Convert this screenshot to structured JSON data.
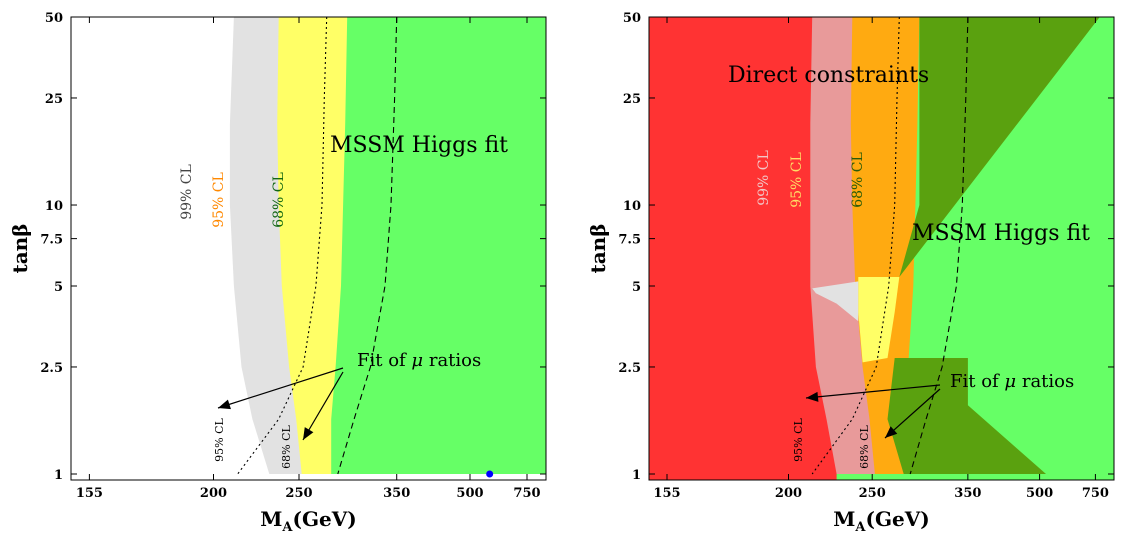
{
  "colors": {
    "white": "#ffffff",
    "gray99": "#e2e2e2",
    "yellow95": "#ffff66",
    "green68": "#66ff66",
    "red_direct": "#ff3333",
    "pink99": "#e89a9a",
    "orange95": "#ffaa11",
    "darkgreen68": "#5aa10f",
    "best_fit_point": "#0000ff",
    "cl99_text": "#444444",
    "cl95_text": "#ff8800",
    "cl68_text": "#116611",
    "cl99_text_r": "#f2c6c6",
    "cl95_text_r": "#ffdd66",
    "cl68_text_r": "#2a5a08",
    "direct_text": "#cc2222"
  },
  "chart_data": [
    {
      "type": "area",
      "xlabel_main": "M",
      "xlabel_sub": "A",
      "xlabel_unit": "(GeV)",
      "ylabel": "tanβ",
      "x_scale": "reciprocal",
      "y_scale": "log",
      "xlim": [
        150,
        900
      ],
      "ylim": [
        0.95,
        50
      ],
      "x_ticks": [
        155,
        200,
        250,
        350,
        500,
        750
      ],
      "y_ticks": [
        1,
        2.5,
        5,
        7.5,
        10,
        25,
        50
      ],
      "fill_end_x": 900,
      "regions": [
        {
          "name": "99% CL",
          "color_key": "gray99",
          "boundary": [
            [
              210,
              50
            ],
            [
              208,
              20
            ],
            [
              208,
              10
            ],
            [
              210,
              5
            ],
            [
              214,
              2.5
            ],
            [
              220,
              1.6
            ],
            [
              230,
              1
            ]
          ]
        },
        {
          "name": "95% CL",
          "color_key": "yellow95",
          "boundary": [
            [
              236,
              50
            ],
            [
              235,
              20
            ],
            [
              236,
              10
            ],
            [
              238,
              5
            ],
            [
              243,
              2.5
            ],
            [
              248,
              1.6
            ],
            [
              252,
              1
            ]
          ]
        },
        {
          "name": "68% CL",
          "color_key": "green68",
          "boundary": [
            [
              291,
              50
            ],
            [
              289,
              20
            ],
            [
              287,
              10
            ],
            [
              285,
              5
            ],
            [
              280,
              2.5
            ],
            [
              276,
              1.6
            ],
            [
              276,
              1
            ]
          ]
        }
      ],
      "curves": [
        {
          "name": "95% CL (Fit of μ ratios)",
          "style": "dotted",
          "points": [
            [
              272,
              50
            ],
            [
              270,
              25
            ],
            [
              268,
              10
            ],
            [
              263,
              5
            ],
            [
              253,
              2.5
            ],
            [
              236,
              1.6
            ],
            [
              212,
              1
            ]
          ]
        },
        {
          "name": "68% CL (Fit of μ ratios)",
          "style": "dashed",
          "points": [
            [
              350,
              50
            ],
            [
              347,
              25
            ],
            [
              342,
              10
            ],
            [
              334,
              5
            ],
            [
              316,
              2.5
            ],
            [
              298,
              1.6
            ],
            [
              282,
              1
            ]
          ]
        }
      ],
      "best_fit": {
        "x": 565,
        "y": 1
      },
      "labels": {
        "title": "MSSM Higgs fit",
        "cl99": "99% CL",
        "cl95": "95% CL",
        "cl68": "68% CL",
        "fit_prefix": "Fit of ",
        "fit_mu": "μ",
        "fit_suffix": " ratios",
        "cl95_small": "95% CL",
        "cl68_small": "68% CL"
      }
    },
    {
      "type": "area",
      "xlabel_main": "M",
      "xlabel_sub": "A",
      "xlabel_unit": "(GeV)",
      "ylabel": "tanβ",
      "x_scale": "reciprocal",
      "y_scale": "log",
      "xlim": [
        150,
        900
      ],
      "ylim": [
        0.95,
        50
      ],
      "x_ticks": [
        155,
        200,
        250,
        350,
        500,
        750
      ],
      "y_ticks": [
        1,
        2.5,
        5,
        7.5,
        10,
        25,
        50
      ],
      "fill_end_x": 900,
      "direct_boundary": [
        [
          212,
          50
        ],
        [
          211,
          20
        ],
        [
          211,
          10
        ],
        [
          211,
          5
        ],
        [
          214,
          2.5
        ],
        [
          220,
          1.6
        ],
        [
          226,
          1
        ]
      ],
      "regions": [
        {
          "name": "99% CL",
          "color_key": "pink99",
          "boundary": [
            [
              236,
              50
            ],
            [
              235,
              20
            ],
            [
              236,
              10
            ],
            [
              238,
              5
            ],
            [
              243,
              2.5
            ],
            [
              248,
              1.6
            ],
            [
              252,
              1
            ]
          ]
        },
        {
          "name": "95% CL",
          "color_key": "orange95",
          "boundary": [
            [
              291,
              50
            ],
            [
              289,
              20
            ],
            [
              287,
              10
            ],
            [
              285,
              5
            ],
            [
              280,
              2.5
            ],
            [
              276,
              1.6
            ],
            [
              276,
              1
            ]
          ]
        }
      ],
      "upper_68": [
        [
          291,
          50
        ],
        [
          780,
          50
        ],
        [
          272,
          5.4
        ],
        [
          291,
          10
        ]
      ],
      "lower_68": [
        [
          268,
          2.7
        ],
        [
          350,
          2.7
        ],
        [
          350,
          1.8
        ],
        [
          520,
          1
        ],
        [
          276,
          1
        ],
        [
          262,
          1.6
        ]
      ],
      "curves": [
        {
          "name": "95% CL (Fit of μ ratios)",
          "style": "dotted",
          "points": [
            [
              272,
              50
            ],
            [
              270,
              25
            ],
            [
              268,
              10
            ],
            [
              263,
              5
            ],
            [
              253,
              2.5
            ],
            [
              236,
              1.6
            ],
            [
              212,
              1
            ]
          ]
        },
        {
          "name": "68% CL (Fit of μ ratios)",
          "style": "dashed",
          "points": [
            [
              350,
              50
            ],
            [
              347,
              25
            ],
            [
              342,
              10
            ],
            [
              334,
              5
            ],
            [
              316,
              2.5
            ],
            [
              298,
              1.6
            ],
            [
              282,
              1
            ]
          ]
        }
      ],
      "labels": {
        "direct": "Direct constraints",
        "title": "MSSM Higgs fit",
        "cl99": "99% CL",
        "cl95": "95% CL",
        "cl68": "68% CL",
        "fit_prefix": "Fit of ",
        "fit_mu": "μ",
        "fit_suffix": " ratios",
        "cl95_small": "95% CL",
        "cl68_small": "68% CL"
      }
    }
  ]
}
